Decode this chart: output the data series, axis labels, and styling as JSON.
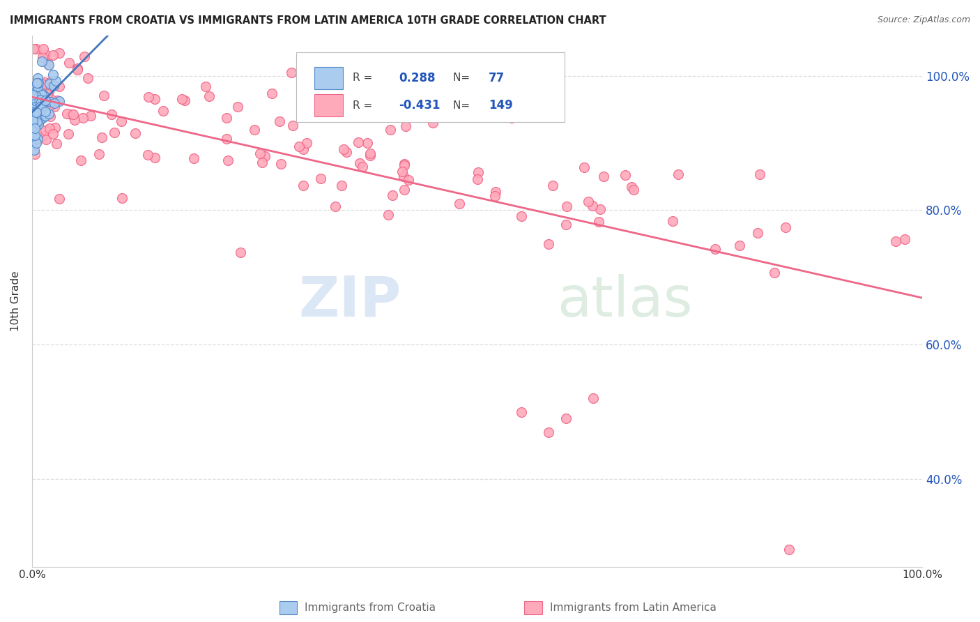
{
  "title": "IMMIGRANTS FROM CROATIA VS IMMIGRANTS FROM LATIN AMERICA 10TH GRADE CORRELATION CHART",
  "source": "Source: ZipAtlas.com",
  "ylabel": "10th Grade",
  "xlim": [
    0.0,
    1.0
  ],
  "ylim": [
    0.27,
    1.06
  ],
  "yticks": [
    0.4,
    0.6,
    0.8,
    1.0
  ],
  "right_ytick_labels": [
    "40.0%",
    "60.0%",
    "80.0%",
    "100.0%"
  ],
  "r_croatia": 0.288,
  "n_croatia": 77,
  "r_latin": -0.431,
  "n_latin": 149,
  "color_croatia_face": "#aaccee",
  "color_croatia_edge": "#5588cc",
  "color_latin_face": "#ffaabb",
  "color_latin_edge": "#ee6688",
  "color_line_croatia": "#4477bb",
  "color_line_latin": "#ee6688",
  "legend_r_color": "#2255bb",
  "legend_n_color": "#333333",
  "title_color": "#222222",
  "source_color": "#666666",
  "ylabel_color": "#333333",
  "axis_color": "#cccccc",
  "grid_color": "#dddddd",
  "tick_label_color": "#2255bb",
  "bottom_label_color": "#666666",
  "watermark_zip_color": "#c5d8f0",
  "watermark_atlas_color": "#c8e0d0"
}
